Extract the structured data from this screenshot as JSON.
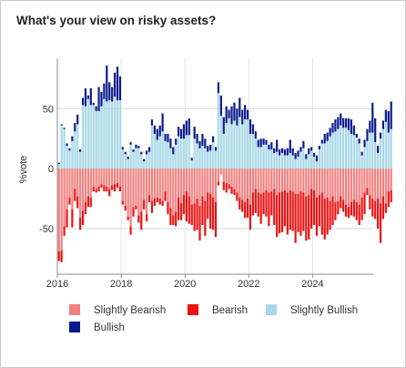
{
  "title": "What's your view on risky assets?",
  "chart_data": {
    "type": "bar",
    "stacked": true,
    "title": "What's your view on risky assets?",
    "xlabel": "",
    "ylabel": "%vote",
    "xlim": [
      2016.0,
      2025.9
    ],
    "ylim": [
      -88,
      92
    ],
    "xticks": [
      2016,
      2018,
      2020,
      2022,
      2024
    ],
    "yticks": [
      -50,
      0,
      50
    ],
    "grid": true,
    "legend_position": "bottom",
    "x_start": 2016.05,
    "x_step": 0.0833,
    "series": [
      {
        "name": "Slightly Bearish",
        "color": "#F28080",
        "sign": -1,
        "values": [
          69,
          68,
          48,
          34,
          24,
          34,
          17,
          23,
          41,
          35,
          28,
          23,
          24,
          15,
          17,
          15,
          13,
          14,
          15,
          17,
          14,
          13,
          12,
          15,
          27,
          31,
          40,
          48,
          32,
          31,
          39,
          36,
          26,
          38,
          22,
          27,
          25,
          24,
          25,
          27,
          19,
          28,
          33,
          39,
          36,
          24,
          29,
          22,
          19,
          23,
          30,
          29,
          25,
          31,
          23,
          27,
          20,
          21,
          24,
          28,
          11,
          5,
          11,
          12,
          13,
          15,
          17,
          20,
          24,
          26,
          28,
          25,
          30,
          20,
          17,
          20,
          21,
          20,
          18,
          20,
          19,
          17,
          22,
          20,
          19,
          18,
          20,
          18,
          19,
          21,
          21,
          19,
          20,
          23,
          22,
          17,
          18,
          24,
          22,
          20,
          25,
          24,
          27,
          23,
          28,
          27,
          23,
          26,
          30,
          32,
          28,
          26,
          28,
          30,
          24,
          20,
          16,
          22,
          25,
          27,
          25,
          29,
          23,
          29,
          19,
          18
        ]
      },
      {
        "name": "Bearish",
        "color": "#EE1111",
        "sign": -1,
        "values": [
          8,
          10,
          8,
          15,
          6,
          15,
          10,
          10,
          10,
          12,
          10,
          9,
          8,
          4,
          3,
          4,
          3,
          5,
          4,
          6,
          4,
          6,
          4,
          4,
          3,
          4,
          3,
          7,
          8,
          3,
          6,
          15,
          8,
          6,
          6,
          10,
          6,
          4,
          5,
          4,
          8,
          10,
          14,
          8,
          12,
          19,
          14,
          16,
          25,
          23,
          17,
          23,
          26,
          29,
          24,
          29,
          22,
          29,
          27,
          29,
          3,
          0,
          7,
          8,
          4,
          6,
          5,
          7,
          10,
          10,
          13,
          16,
          21,
          19,
          20,
          20,
          25,
          18,
          22,
          28,
          20,
          30,
          35,
          34,
          34,
          30,
          35,
          33,
          33,
          41,
          32,
          37,
          32,
          37,
          37,
          33,
          29,
          32,
          26,
          35,
          34,
          31,
          24,
          24,
          15,
          11,
          10,
          10,
          10,
          9,
          11,
          14,
          15,
          17,
          19,
          18,
          6,
          12,
          15,
          15,
          25,
          33,
          19,
          8,
          13,
          10
        ]
      },
      {
        "name": "Slightly Bullish",
        "color": "#A9D9E8",
        "sign": 1,
        "values": [
          4,
          36,
          33,
          19,
          15,
          23,
          31,
          37,
          14,
          53,
          52,
          58,
          53,
          53,
          48,
          48,
          52,
          58,
          56,
          57,
          56,
          60,
          57,
          57,
          16,
          12,
          8,
          20,
          14,
          17,
          17,
          12,
          6,
          12,
          14,
          36,
          29,
          24,
          27,
          31,
          23,
          22,
          17,
          12,
          20,
          27,
          25,
          25,
          28,
          28,
          7,
          25,
          21,
          17,
          19,
          17,
          14,
          15,
          22,
          15,
          63,
          44,
          29,
          38,
          42,
          37,
          40,
          36,
          43,
          37,
          41,
          41,
          29,
          29,
          25,
          18,
          18,
          20,
          20,
          16,
          16,
          13,
          14,
          11,
          13,
          11,
          11,
          13,
          11,
          8,
          10,
          14,
          17,
          8,
          12,
          15,
          10,
          6,
          16,
          21,
          21,
          23,
          27,
          30,
          31,
          33,
          36,
          34,
          34,
          32,
          29,
          28,
          26,
          21,
          11,
          18,
          23,
          30,
          30,
          22,
          13,
          25,
          33,
          39,
          30,
          33
        ]
      },
      {
        "name": "Bullish",
        "color": "#0A1A8C",
        "sign": 1,
        "values": [
          1,
          1,
          1,
          2,
          2,
          4,
          7,
          8,
          2,
          6,
          15,
          3,
          14,
          2,
          4,
          20,
          12,
          13,
          30,
          15,
          12,
          20,
          28,
          20,
          2,
          2,
          2,
          2,
          2,
          3,
          2,
          2,
          2,
          3,
          4,
          5,
          7,
          9,
          9,
          15,
          6,
          7,
          8,
          6,
          5,
          8,
          8,
          12,
          12,
          14,
          2,
          10,
          8,
          6,
          10,
          8,
          5,
          5,
          5,
          3,
          9,
          17,
          14,
          14,
          7,
          15,
          15,
          14,
          16,
          12,
          12,
          8,
          12,
          8,
          6,
          6,
          7,
          5,
          4,
          4,
          6,
          4,
          10,
          5,
          4,
          5,
          6,
          11,
          6,
          5,
          5,
          4,
          6,
          4,
          5,
          3,
          3,
          5,
          3,
          3,
          8,
          7,
          7,
          8,
          10,
          10,
          10,
          8,
          8,
          10,
          12,
          8,
          3,
          4,
          3,
          6,
          10,
          10,
          25,
          20,
          6,
          5,
          7,
          10,
          18,
          23
        ]
      }
    ]
  }
}
